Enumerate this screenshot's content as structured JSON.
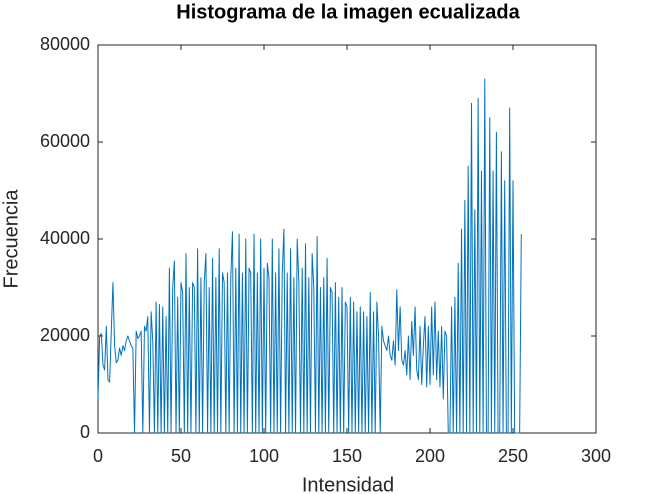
{
  "chart_data": {
    "type": "line",
    "title": "Histograma de la imagen ecualizada",
    "x_label": "Intensidad",
    "y_label": "Frecuencia",
    "x": [
      0,
      1,
      2,
      3,
      4,
      5,
      6,
      7,
      8,
      9,
      10,
      11,
      12,
      13,
      14,
      15,
      16,
      17,
      18,
      19,
      20,
      21,
      22,
      23,
      24,
      25,
      26,
      27,
      28,
      29,
      30,
      31,
      32,
      33,
      34,
      35,
      36,
      37,
      38,
      39,
      40,
      41,
      42,
      43,
      44,
      45,
      46,
      47,
      48,
      49,
      50,
      51,
      52,
      53,
      54,
      55,
      56,
      57,
      58,
      59,
      60,
      61,
      62,
      63,
      64,
      65,
      66,
      67,
      68,
      69,
      70,
      71,
      72,
      73,
      74,
      75,
      76,
      77,
      78,
      79,
      80,
      81,
      82,
      83,
      84,
      85,
      86,
      87,
      88,
      89,
      90,
      91,
      92,
      93,
      94,
      95,
      96,
      97,
      98,
      99,
      100,
      101,
      102,
      103,
      104,
      105,
      106,
      107,
      108,
      109,
      110,
      111,
      112,
      113,
      114,
      115,
      116,
      117,
      118,
      119,
      120,
      121,
      122,
      123,
      124,
      125,
      126,
      127,
      128,
      129,
      130,
      131,
      132,
      133,
      134,
      135,
      136,
      137,
      138,
      139,
      140,
      141,
      142,
      143,
      144,
      145,
      146,
      147,
      148,
      149,
      150,
      151,
      152,
      153,
      154,
      155,
      156,
      157,
      158,
      159,
      160,
      161,
      162,
      163,
      164,
      165,
      166,
      167,
      168,
      169,
      170,
      171,
      172,
      173,
      174,
      175,
      176,
      177,
      178,
      179,
      180,
      181,
      182,
      183,
      184,
      185,
      186,
      187,
      188,
      189,
      190,
      191,
      192,
      193,
      194,
      195,
      196,
      197,
      198,
      199,
      200,
      201,
      202,
      203,
      204,
      205,
      206,
      207,
      208,
      209,
      210,
      211,
      212,
      213,
      214,
      215,
      216,
      217,
      218,
      219,
      220,
      221,
      222,
      223,
      224,
      225,
      226,
      227,
      228,
      229,
      230,
      231,
      232,
      233,
      234,
      235,
      236,
      237,
      238,
      239,
      240,
      241,
      242,
      243,
      244,
      245,
      246,
      247,
      248,
      249,
      250,
      251,
      252,
      253,
      254,
      255
    ],
    "series": [
      {
        "color": "#0072bd",
        "values": [
          7000,
          20000,
          20500,
          14000,
          13000,
          22000,
          11000,
          10500,
          21000,
          31000,
          18000,
          14500,
          15000,
          17500,
          16000,
          18000,
          17000,
          19000,
          20000,
          19000,
          18000,
          17500,
          0,
          21000,
          19500,
          20000,
          21000,
          0,
          22000,
          21000,
          24000,
          0,
          25000,
          19000,
          0,
          27000,
          0,
          26500,
          0,
          26000,
          0,
          24000,
          0,
          34000,
          0,
          30000,
          35500,
          0,
          28000,
          0,
          31000,
          29000,
          0,
          37000,
          0,
          30000,
          0,
          31000,
          30000,
          0,
          38000,
          0,
          32000,
          0,
          31000,
          37000,
          0,
          30000,
          0,
          36000,
          0,
          32000,
          0,
          38000,
          0,
          33000,
          31000,
          0,
          33000,
          0,
          32000,
          41500,
          0,
          34000,
          0,
          41000,
          0,
          33000,
          0,
          40000,
          0,
          34000,
          33000,
          0,
          41000,
          0,
          33000,
          0,
          40000,
          0,
          34000,
          0,
          35000,
          32000,
          0,
          40000,
          0,
          33000,
          0,
          38000,
          0,
          33000,
          42000,
          0,
          33000,
          0,
          38000,
          0,
          32000,
          0,
          40000,
          31000,
          0,
          34000,
          0,
          39000,
          0,
          32000,
          0,
          37000,
          30000,
          0,
          40500,
          0,
          30000,
          0,
          32000,
          0,
          36000,
          0,
          30000,
          29000,
          0,
          31000,
          0,
          28000,
          0,
          30000,
          0,
          27000,
          26000,
          0,
          28000,
          0,
          27000,
          0,
          25000,
          0,
          26000,
          0,
          25000,
          0,
          24000,
          0,
          29000,
          0,
          25000,
          0,
          27000,
          20000,
          0,
          22000,
          19000,
          18000,
          17000,
          20000,
          16000,
          15000,
          19000,
          14000,
          29500,
          17000,
          26000,
          15000,
          14000,
          17000,
          12000,
          20000,
          11000,
          23000,
          16000,
          26000,
          13000,
          11000,
          22000,
          10000,
          18000,
          24000,
          9500,
          22000,
          10000,
          26000,
          12000,
          27000,
          11000,
          21000,
          9500,
          22000,
          7000,
          21000,
          20000,
          0,
          0,
          26000,
          0,
          28000,
          0,
          35000,
          0,
          42000,
          0,
          48000,
          0,
          55000,
          0,
          68000,
          0,
          46000,
          0,
          69000,
          0,
          54000,
          0,
          73000,
          0,
          0,
          65000,
          0,
          54000,
          0,
          62000,
          0,
          0,
          58000,
          0,
          52000,
          0,
          0,
          67000,
          0,
          52000,
          0,
          0,
          0,
          0,
          41000
        ]
      }
    ],
    "xlim": [
      0,
      300
    ],
    "xticks": [
      0,
      50,
      100,
      150,
      200,
      250,
      300
    ],
    "ylim": [
      0,
      80000
    ],
    "yticks": [
      0,
      20000,
      40000,
      60000,
      80000
    ]
  }
}
